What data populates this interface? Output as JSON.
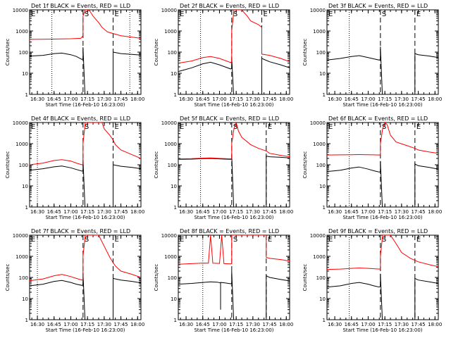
{
  "common": {
    "xlabel": "Start Time (16-Feb-10 16:23:00)",
    "ylabel": "Counts/sec",
    "x_ticks": [
      "16:30",
      "16:45",
      "17:00",
      "17:15",
      "17:30",
      "17:45",
      "18:00"
    ],
    "y_ticks": [
      "1",
      "10",
      "100",
      "1000",
      "10000"
    ],
    "marker_labels": [
      "E",
      "S",
      "E"
    ],
    "colors": {
      "events": "#000000",
      "lld": "#ff0000",
      "axes": "#000000"
    }
  },
  "chart_data": [
    {
      "type": "line",
      "title": "Det 1f BLACK = Events, RED = LLD",
      "x_range": [
        "16:23",
        "18:03"
      ],
      "y_range": [
        1,
        10000
      ],
      "y_scale": "log",
      "dotted_lines": [
        "16:43",
        "17:53"
      ],
      "dashed_lines": [
        "17:11",
        "17:38"
      ],
      "series": [
        {
          "name": "Events",
          "color": "#000000",
          "x": [
            "16:23",
            "16:35",
            "16:45",
            "16:52",
            "17:00",
            "17:05",
            "17:10",
            "17:11",
            "17:11",
            "17:13",
            "17:15",
            "17:38",
            "17:38",
            "17:45",
            "17:55",
            "18:03"
          ],
          "y": [
            65,
            70,
            85,
            90,
            75,
            62,
            45,
            48,
            170,
            0,
            0,
            0,
            100,
            85,
            78,
            72
          ]
        },
        {
          "name": "LLD",
          "color": "#ff0000",
          "x": [
            "16:23",
            "16:40",
            "17:00",
            "17:09",
            "17:11",
            "17:11",
            "17:13",
            "17:15",
            "17:17",
            "17:20",
            "17:25",
            "17:28",
            "17:33",
            "17:45",
            "18:03"
          ],
          "y": [
            400,
            410,
            430,
            450,
            600,
            5000,
            10000,
            10000,
            9000,
            5000,
            2500,
            1500,
            900,
            600,
            450
          ]
        }
      ]
    },
    {
      "type": "line",
      "title": "Det 2f BLACK = Events, RED = LLD",
      "x_range": [
        "16:23",
        "18:03"
      ],
      "y_range": [
        1,
        10000
      ],
      "y_scale": "log",
      "dotted_lines": [
        "16:43"
      ],
      "dashed_lines": [
        "17:11",
        "17:38"
      ],
      "series": [
        {
          "name": "Events",
          "color": "#000000",
          "x": [
            "16:23",
            "16:35",
            "16:45",
            "16:52",
            "17:00",
            "17:05",
            "17:10",
            "17:11",
            "17:11",
            "17:13",
            "17:15",
            "17:38",
            "17:38",
            "17:45",
            "17:55",
            "18:03"
          ],
          "y": [
            12,
            18,
            28,
            33,
            25,
            20,
            16,
            17,
            55,
            0,
            0,
            0,
            50,
            35,
            25,
            18
          ]
        },
        {
          "name": "LLD",
          "color": "#ff0000",
          "x": [
            "16:23",
            "16:35",
            "16:45",
            "16:52",
            "17:00",
            "17:05",
            "17:10",
            "17:11",
            "17:11",
            "17:13",
            "17:15",
            "17:20",
            "17:25",
            "17:28",
            "17:35",
            "17:38",
            "17:38",
            "17:45",
            "17:55",
            "18:03"
          ],
          "y": [
            30,
            38,
            55,
            62,
            50,
            40,
            32,
            35,
            1000,
            10000,
            10000,
            10000,
            5000,
            3000,
            2000,
            1500,
            80,
            70,
            50,
            35
          ]
        }
      ]
    },
    {
      "type": "line",
      "title": "Det 3f BLACK = Events, RED = LLD",
      "x_range": [
        "16:23",
        "18:03"
      ],
      "y_range": [
        1,
        10000
      ],
      "y_scale": "log",
      "dotted_lines": [
        "16:43"
      ],
      "dashed_lines": [
        "17:11",
        "17:42"
      ],
      "series": [
        {
          "name": "Events",
          "color": "#000000",
          "x": [
            "16:23",
            "16:35",
            "16:45",
            "16:52",
            "17:00",
            "17:05",
            "17:10",
            "17:11",
            "17:11",
            "17:13",
            "17:42",
            "17:42",
            "17:45",
            "17:55",
            "18:03"
          ],
          "y": [
            42,
            50,
            62,
            68,
            55,
            48,
            42,
            45,
            180,
            0,
            0,
            85,
            75,
            65,
            55
          ]
        }
      ]
    },
    {
      "type": "line",
      "title": "Det 4f BLACK = Events, RED = LLD",
      "x_range": [
        "16:23",
        "18:03"
      ],
      "y_range": [
        1,
        10000
      ],
      "y_scale": "log",
      "dotted_lines": [
        "16:30"
      ],
      "dashed_lines": [
        "17:11",
        "17:38"
      ],
      "series": [
        {
          "name": "Events",
          "color": "#000000",
          "x": [
            "16:23",
            "16:35",
            "16:45",
            "16:52",
            "17:00",
            "17:05",
            "17:10",
            "17:11",
            "17:11",
            "17:13",
            "17:15",
            "17:38",
            "17:38",
            "17:45",
            "17:55",
            "18:03"
          ],
          "y": [
            55,
            65,
            80,
            88,
            72,
            60,
            50,
            52,
            180,
            0,
            0,
            0,
            100,
            85,
            75,
            65
          ]
        },
        {
          "name": "LLD",
          "color": "#ff0000",
          "x": [
            "16:23",
            "16:35",
            "16:45",
            "16:52",
            "17:00",
            "17:05",
            "17:10",
            "17:11",
            "17:11",
            "17:13",
            "17:15",
            "17:28",
            "17:30",
            "17:35",
            "17:38",
            "17:40",
            "17:45",
            "17:55",
            "18:03"
          ],
          "y": [
            100,
            120,
            160,
            175,
            150,
            120,
            100,
            105,
            1000,
            10000,
            10000,
            10000,
            5000,
            2500,
            1500,
            900,
            500,
            300,
            200
          ]
        }
      ]
    },
    {
      "type": "line",
      "title": "Det 5f BLACK = Events, RED = LLD",
      "x_range": [
        "16:23",
        "18:03"
      ],
      "y_range": [
        1,
        10000
      ],
      "y_scale": "log",
      "dotted_lines": [
        "16:43"
      ],
      "dashed_lines": [
        "17:11",
        "17:42"
      ],
      "series": [
        {
          "name": "Events",
          "color": "#000000",
          "x": [
            "16:23",
            "16:35",
            "16:45",
            "16:52",
            "17:00",
            "17:05",
            "17:10",
            "17:11",
            "17:11",
            "17:13",
            "17:42",
            "17:42",
            "17:45",
            "17:55",
            "18:03"
          ],
          "y": [
            180,
            185,
            195,
            200,
            190,
            185,
            180,
            185,
            300,
            0,
            0,
            260,
            240,
            225,
            210
          ]
        },
        {
          "name": "LLD",
          "color": "#ff0000",
          "x": [
            "16:23",
            "16:35",
            "16:45",
            "16:52",
            "17:00",
            "17:05",
            "17:10",
            "17:11",
            "17:11",
            "17:13",
            "17:15",
            "17:17",
            "17:20",
            "17:28",
            "17:35",
            "17:42",
            "17:45",
            "17:55",
            "18:03"
          ],
          "y": [
            190,
            195,
            205,
            210,
            200,
            195,
            190,
            200,
            1000,
            5000,
            10000,
            4000,
            2000,
            900,
            600,
            450,
            350,
            280,
            240
          ]
        }
      ]
    },
    {
      "type": "line",
      "title": "Det 6f BLACK = Events, RED = LLD",
      "x_range": [
        "16:23",
        "18:03"
      ],
      "y_range": [
        1,
        10000
      ],
      "y_scale": "log",
      "dotted_lines": [
        "16:43"
      ],
      "dashed_lines": [
        "17:11",
        "17:42"
      ],
      "series": [
        {
          "name": "Events",
          "color": "#000000",
          "x": [
            "16:23",
            "16:35",
            "16:45",
            "16:52",
            "17:00",
            "17:05",
            "17:10",
            "17:11",
            "17:11",
            "17:13",
            "17:42",
            "17:42",
            "17:45",
            "17:55",
            "18:03"
          ],
          "y": [
            48,
            55,
            70,
            78,
            62,
            52,
            45,
            48,
            150,
            0,
            0,
            110,
            90,
            75,
            62
          ]
        },
        {
          "name": "LLD",
          "color": "#ff0000",
          "x": [
            "16:23",
            "16:35",
            "16:45",
            "16:52",
            "17:00",
            "17:05",
            "17:10",
            "17:11",
            "17:11",
            "17:13",
            "17:15",
            "17:17",
            "17:20",
            "17:25",
            "17:35",
            "17:42",
            "17:45",
            "17:55",
            "18:03"
          ],
          "y": [
            290,
            295,
            300,
            305,
            300,
            295,
            290,
            300,
            1000,
            5000,
            10000,
            8000,
            2500,
            1200,
            800,
            600,
            500,
            400,
            350
          ]
        }
      ]
    },
    {
      "type": "line",
      "title": "Det 7f BLACK = Events, RED = LLD",
      "x_range": [
        "16:23",
        "18:03"
      ],
      "y_range": [
        1,
        10000
      ],
      "y_scale": "log",
      "dotted_lines": [
        "16:30"
      ],
      "dashed_lines": [
        "17:11",
        "17:38"
      ],
      "series": [
        {
          "name": "Events",
          "color": "#000000",
          "x": [
            "16:23",
            "16:35",
            "16:45",
            "16:52",
            "17:00",
            "17:05",
            "17:10",
            "17:11",
            "17:11",
            "17:13",
            "17:15",
            "17:38",
            "17:38",
            "17:45",
            "17:55",
            "18:03"
          ],
          "y": [
            40,
            48,
            65,
            72,
            58,
            48,
            42,
            45,
            170,
            0,
            0,
            0,
            90,
            75,
            65,
            55
          ]
        },
        {
          "name": "LLD",
          "color": "#ff0000",
          "x": [
            "16:23",
            "16:35",
            "16:45",
            "16:52",
            "17:00",
            "17:05",
            "17:10",
            "17:11",
            "17:11",
            "17:13",
            "17:15",
            "17:20",
            "17:25",
            "17:30",
            "17:35",
            "17:38",
            "17:40",
            "17:45",
            "17:55",
            "18:03"
          ],
          "y": [
            70,
            85,
            120,
            140,
            110,
            90,
            75,
            80,
            1000,
            10000,
            10000,
            10000,
            10000,
            3000,
            900,
            500,
            350,
            200,
            140,
            100
          ]
        }
      ]
    },
    {
      "type": "line",
      "title": "Det 8f BLACK = Events, RED = LLD",
      "x_range": [
        "16:23",
        "18:03"
      ],
      "y_range": [
        1,
        10000
      ],
      "y_scale": "log",
      "dotted_lines": [
        "16:45"
      ],
      "dashed_lines": [
        "17:11",
        "17:42"
      ],
      "series": [
        {
          "name": "Events",
          "color": "#000000",
          "x": [
            "16:23",
            "16:35",
            "16:45",
            "16:52",
            "16:58",
            "17:01",
            "17:01",
            "17:01",
            "17:05",
            "17:10",
            "17:11",
            "17:11",
            "17:13",
            "17:42",
            "17:42",
            "17:45",
            "17:55",
            "18:03"
          ],
          "y": [
            48,
            52,
            58,
            62,
            60,
            55,
            3,
            58,
            55,
            50,
            52,
            200,
            0,
            0,
            120,
            100,
            80,
            68
          ]
        },
        {
          "name": "LLD",
          "color": "#ff0000",
          "x": [
            "16:23",
            "16:35",
            "16:45",
            "16:50",
            "16:52",
            "16:54",
            "17:00",
            "17:02",
            "17:04",
            "17:10",
            "17:11",
            "17:11",
            "17:13",
            "17:42",
            "17:42",
            "17:45",
            "17:55",
            "18:03"
          ],
          "y": [
            420,
            450,
            480,
            470,
            10000,
            470,
            460,
            10000,
            450,
            440,
            450,
            10000,
            10000,
            10000,
            900,
            800,
            700,
            600
          ]
        }
      ]
    },
    {
      "type": "line",
      "title": "Det 9f BLACK = Events, RED = LLD",
      "x_range": [
        "16:23",
        "18:03"
      ],
      "y_range": [
        1,
        10000
      ],
      "y_scale": "log",
      "dotted_lines": [
        "16:43"
      ],
      "dashed_lines": [
        "17:11",
        "17:42"
      ],
      "series": [
        {
          "name": "Events",
          "color": "#000000",
          "x": [
            "16:23",
            "16:35",
            "16:45",
            "16:52",
            "17:00",
            "17:05",
            "17:10",
            "17:11",
            "17:11",
            "17:13",
            "17:42",
            "17:42",
            "17:45",
            "17:55",
            "18:03"
          ],
          "y": [
            35,
            40,
            52,
            58,
            48,
            40,
            35,
            38,
            150,
            0,
            0,
            90,
            75,
            62,
            52
          ]
        },
        {
          "name": "LLD",
          "color": "#ff0000",
          "x": [
            "16:23",
            "16:35",
            "16:45",
            "16:52",
            "17:00",
            "17:05",
            "17:10",
            "17:11",
            "17:11",
            "17:13",
            "17:20",
            "17:25",
            "17:30",
            "17:38",
            "17:45",
            "17:55",
            "18:03"
          ],
          "y": [
            240,
            250,
            270,
            280,
            270,
            260,
            250,
            255,
            1000,
            10000,
            10000,
            4000,
            1500,
            800,
            550,
            400,
            320
          ]
        }
      ]
    }
  ]
}
